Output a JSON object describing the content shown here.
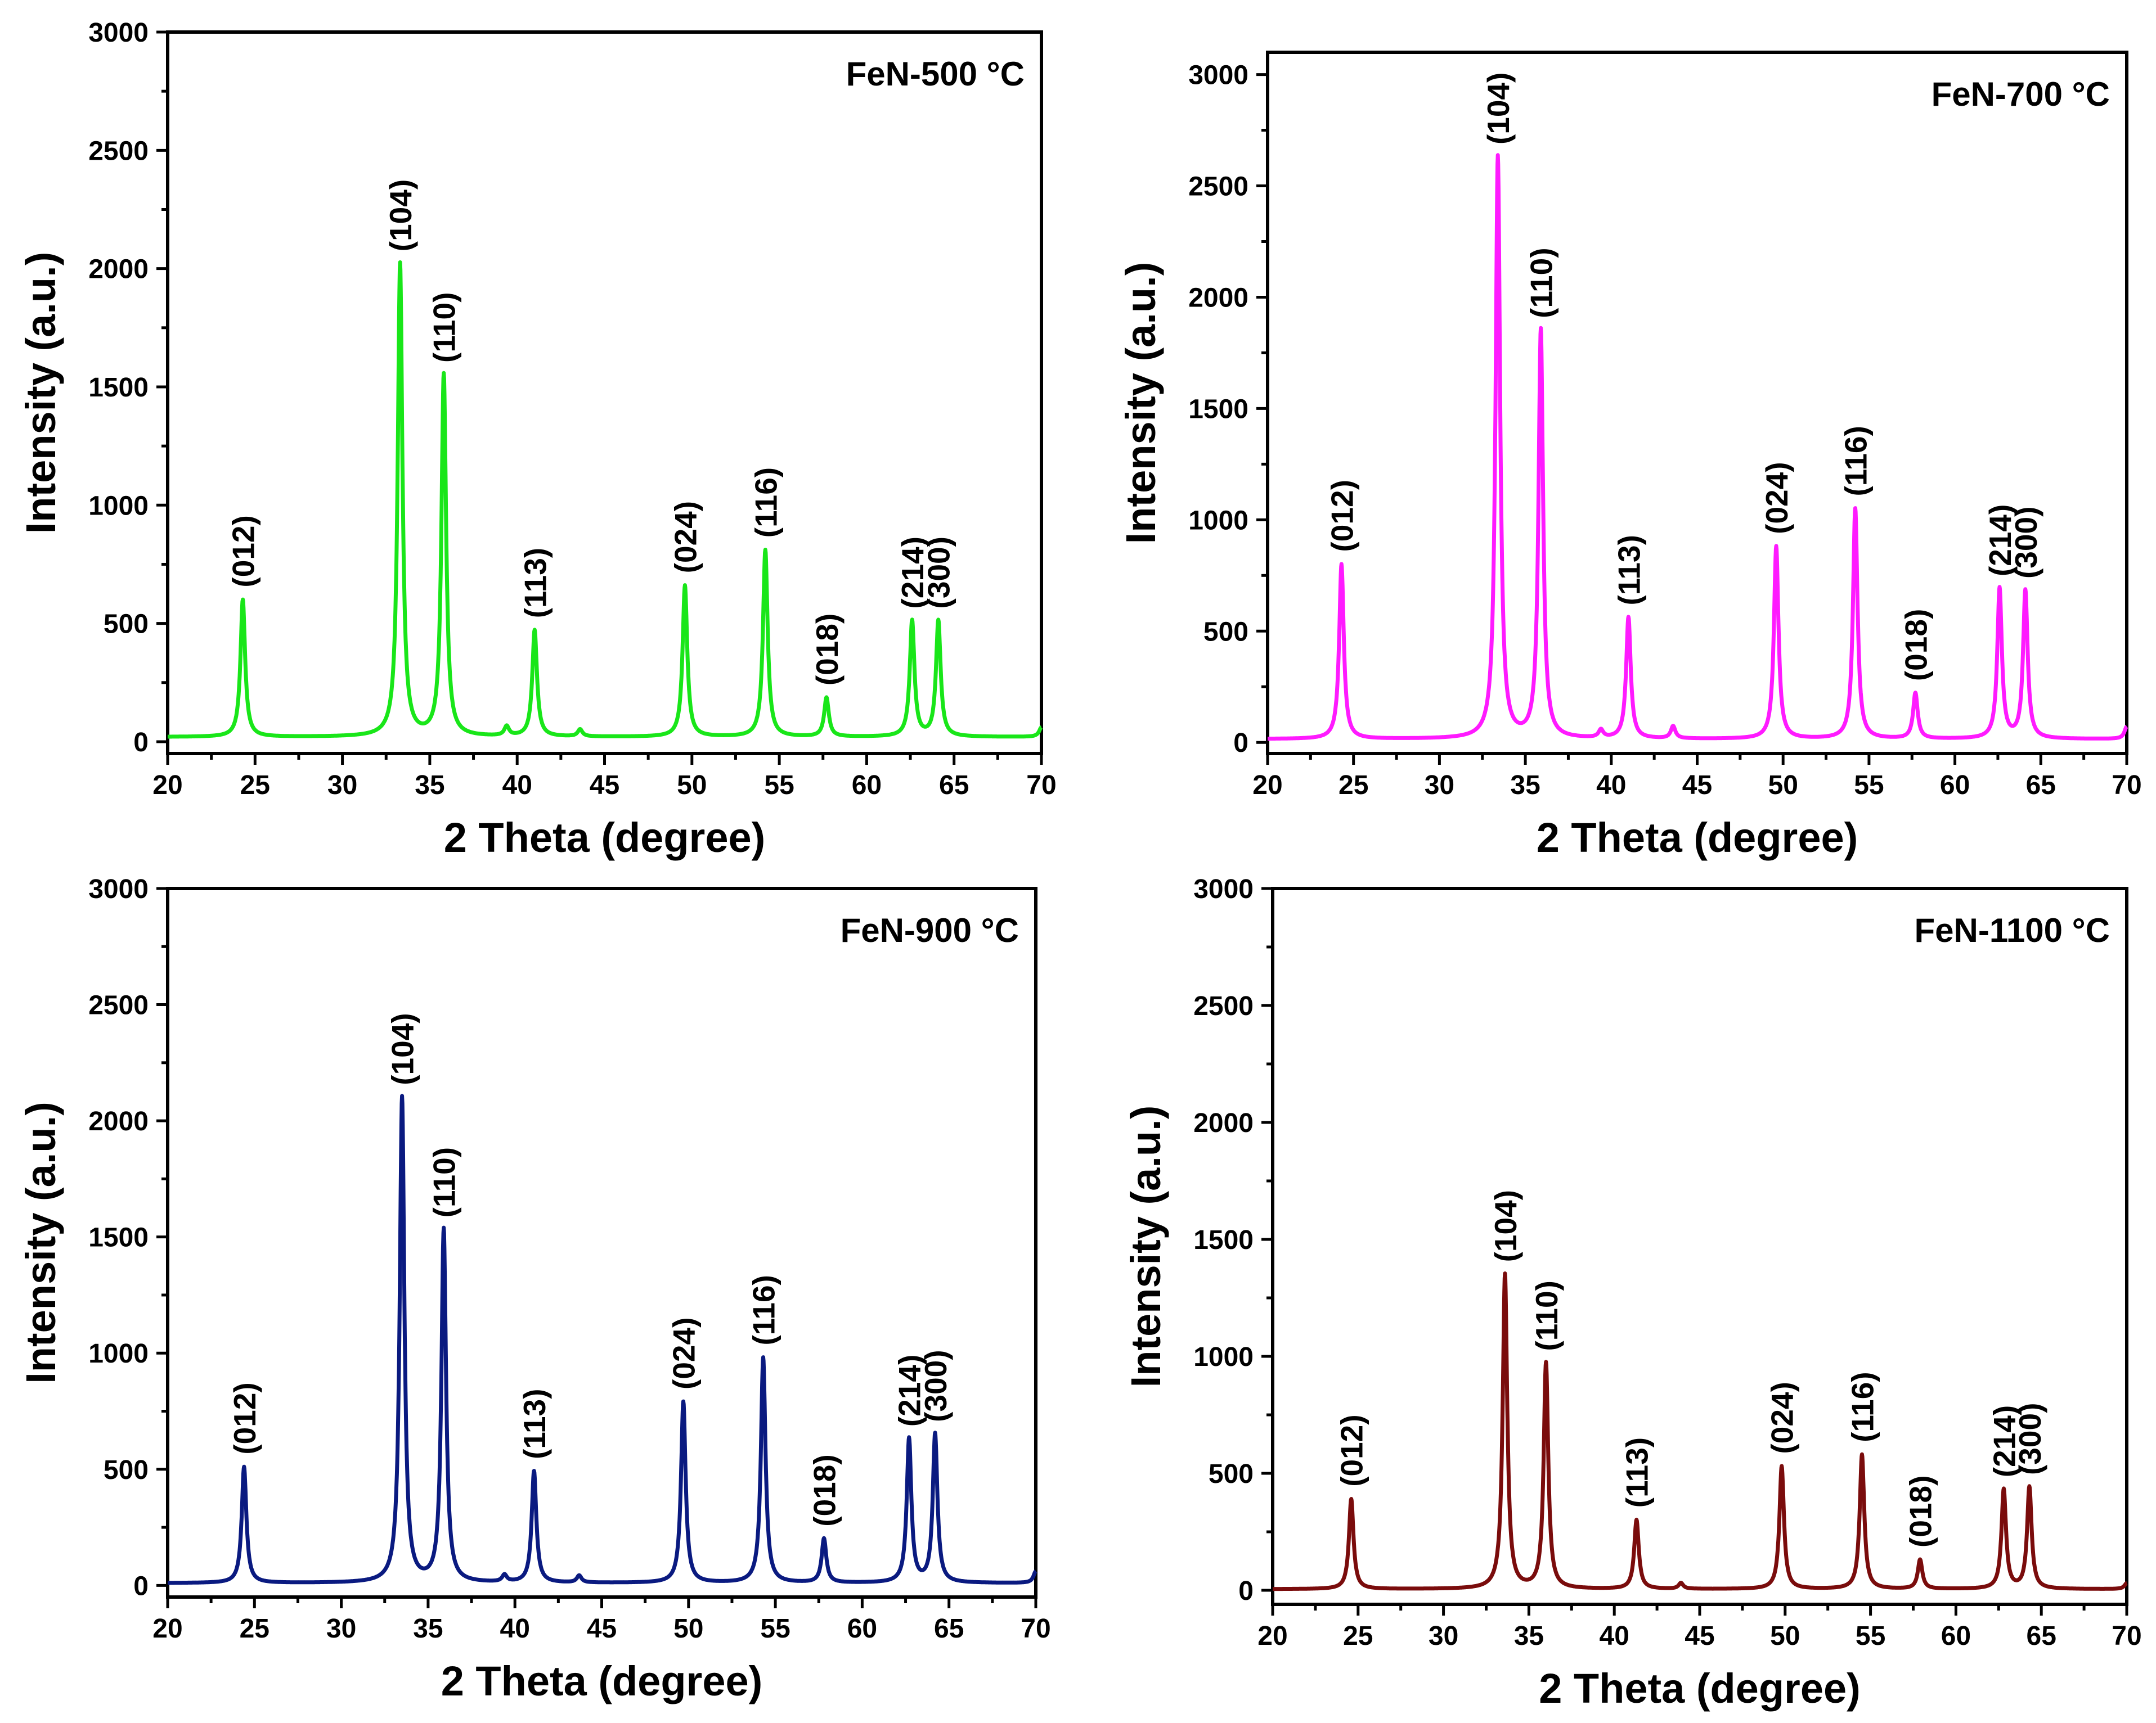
{
  "chart_data": [
    {
      "type": "line",
      "title": "FeN-500 °C",
      "xlabel": "2 Theta (degree)",
      "ylabel": "Intensity (a.u.)",
      "xlim": [
        20,
        70
      ],
      "ylim": [
        -50,
        3000
      ],
      "xticks": [
        20,
        25,
        30,
        35,
        40,
        45,
        50,
        55,
        60,
        65,
        70
      ],
      "yticks": [
        0,
        500,
        1000,
        1500,
        2000,
        2500,
        3000
      ],
      "color": "#19e619",
      "baseline": 20,
      "peaks": [
        {
          "label": "(012)",
          "x": 24.3,
          "y": 600
        },
        {
          "label": "(104)",
          "x": 33.3,
          "y": 2020
        },
        {
          "label": "(110)",
          "x": 35.8,
          "y": 1550
        },
        {
          "label": "",
          "x": 39.4,
          "y": 60
        },
        {
          "label": "(113)",
          "x": 41.0,
          "y": 470
        },
        {
          "label": "",
          "x": 43.6,
          "y": 50
        },
        {
          "label": "(024)",
          "x": 49.6,
          "y": 660
        },
        {
          "label": "(116)",
          "x": 54.2,
          "y": 810
        },
        {
          "label": "(018)",
          "x": 57.7,
          "y": 185
        },
        {
          "label": "(214)",
          "x": 62.6,
          "y": 510
        },
        {
          "label": "(300)",
          "x": 64.1,
          "y": 510
        },
        {
          "label": "",
          "x": 70.0,
          "y": 60
        }
      ]
    },
    {
      "type": "line",
      "title": "FeN-700 °C",
      "xlabel": "2 Theta (degree)",
      "ylabel": "Intensity (a.u.)",
      "xlim": [
        20,
        70
      ],
      "ylim": [
        -50,
        3100
      ],
      "xticks": [
        20,
        25,
        30,
        35,
        40,
        45,
        50,
        55,
        60,
        65,
        70
      ],
      "yticks": [
        0,
        500,
        1000,
        1500,
        2000,
        2500,
        3000
      ],
      "color": "#ff1aff",
      "baseline": 15,
      "peaks": [
        {
          "label": "(012)",
          "x": 24.3,
          "y": 800
        },
        {
          "label": "(104)",
          "x": 33.4,
          "y": 2630
        },
        {
          "label": "(110)",
          "x": 35.9,
          "y": 1850
        },
        {
          "label": "",
          "x": 39.4,
          "y": 50
        },
        {
          "label": "(113)",
          "x": 41.0,
          "y": 560
        },
        {
          "label": "",
          "x": 43.6,
          "y": 70
        },
        {
          "label": "(024)",
          "x": 49.6,
          "y": 880
        },
        {
          "label": "(116)",
          "x": 54.2,
          "y": 1050
        },
        {
          "label": "(018)",
          "x": 57.7,
          "y": 220
        },
        {
          "label": "(214)",
          "x": 62.6,
          "y": 690
        },
        {
          "label": "(300)",
          "x": 64.1,
          "y": 680
        },
        {
          "label": "",
          "x": 70.0,
          "y": 70
        }
      ]
    },
    {
      "type": "line",
      "title": "FeN-900 °C",
      "xlabel": "2 Theta (degree)",
      "ylabel": "Intensity (a.u.)",
      "xlim": [
        20,
        70
      ],
      "ylim": [
        -50,
        3000
      ],
      "xticks": [
        20,
        25,
        30,
        35,
        40,
        45,
        50,
        55,
        60,
        65,
        70
      ],
      "yticks": [
        0,
        500,
        1000,
        1500,
        2000,
        2500,
        3000
      ],
      "color": "#0a1a80",
      "baseline": 10,
      "peaks": [
        {
          "label": "(012)",
          "x": 24.4,
          "y": 510
        },
        {
          "label": "(104)",
          "x": 33.5,
          "y": 2100
        },
        {
          "label": "(110)",
          "x": 35.9,
          "y": 1530
        },
        {
          "label": "",
          "x": 39.4,
          "y": 40
        },
        {
          "label": "(113)",
          "x": 41.1,
          "y": 490
        },
        {
          "label": "",
          "x": 43.7,
          "y": 40
        },
        {
          "label": "(024)",
          "x": 49.7,
          "y": 790
        },
        {
          "label": "(116)",
          "x": 54.3,
          "y": 980
        },
        {
          "label": "(018)",
          "x": 57.8,
          "y": 200
        },
        {
          "label": "(214)",
          "x": 62.7,
          "y": 630
        },
        {
          "label": "(300)",
          "x": 64.2,
          "y": 650
        },
        {
          "label": "",
          "x": 70.0,
          "y": 60
        }
      ]
    },
    {
      "type": "line",
      "title": "FeN-1100 °C",
      "xlabel": "2 Theta (degree)",
      "ylabel": "Intensity (a.u.)",
      "xlim": [
        20,
        70
      ],
      "ylim": [
        -60,
        3000
      ],
      "xticks": [
        20,
        25,
        30,
        35,
        40,
        45,
        50,
        55,
        60,
        65,
        70
      ],
      "yticks": [
        0,
        500,
        1000,
        1500,
        2000,
        2500,
        3000
      ],
      "color": "#7a0c0c",
      "baseline": 5,
      "peaks": [
        {
          "label": "(012)",
          "x": 24.6,
          "y": 390
        },
        {
          "label": "(104)",
          "x": 33.6,
          "y": 1350
        },
        {
          "label": "(110)",
          "x": 36.0,
          "y": 970
        },
        {
          "label": "(113)",
          "x": 41.3,
          "y": 300
        },
        {
          "label": "",
          "x": 43.9,
          "y": 30
        },
        {
          "label": "(024)",
          "x": 49.8,
          "y": 530
        },
        {
          "label": "(116)",
          "x": 54.5,
          "y": 580
        },
        {
          "label": "(018)",
          "x": 57.9,
          "y": 130
        },
        {
          "label": "(214)",
          "x": 62.8,
          "y": 430
        },
        {
          "label": "(300)",
          "x": 64.3,
          "y": 440
        },
        {
          "label": "",
          "x": 70.0,
          "y": 30
        }
      ]
    }
  ]
}
